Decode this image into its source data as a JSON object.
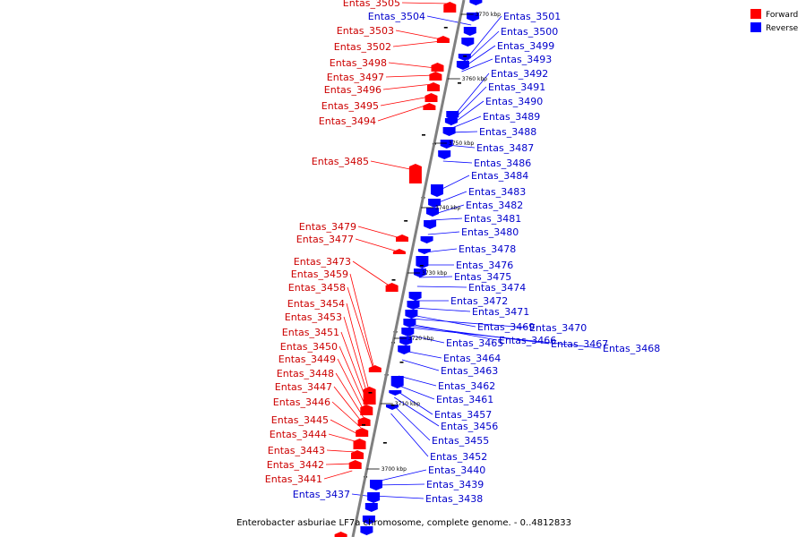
{
  "caption": "Enterobacter asburiae LF7a chromosome, complete genome. - 0..4812833",
  "legend": [
    {
      "label": "Forward",
      "color": "#ff0000"
    },
    {
      "label": "Reverse",
      "color": "#0000ff"
    }
  ],
  "colors": {
    "forward": "#ff0000",
    "forward_label": "#cc0000",
    "reverse": "#0000ff",
    "reverse_label": "#0000cc",
    "backbone": "#808080"
  },
  "ticks": [
    "3770 kbp",
    "3760 kbp",
    "3750 kbp",
    "3740 kbp",
    "3730 kbp",
    "3720 kbp",
    "3710 kbp",
    "3700 kbp"
  ],
  "forward_genes": [
    "Entas_3505",
    "Entas_3503",
    "Entas_3502",
    "Entas_3498",
    "Entas_3497",
    "Entas_3496",
    "Entas_3495",
    "Entas_3494",
    "Entas_3485",
    "Entas_3479",
    "Entas_3477",
    "Entas_3473",
    "Entas_3459",
    "Entas_3458",
    "Entas_3454",
    "Entas_3453",
    "Entas_3451",
    "Entas_3450",
    "Entas_3449",
    "Entas_3448",
    "Entas_3447",
    "Entas_3446",
    "Entas_3445",
    "Entas_3444",
    "Entas_3443",
    "Entas_3442",
    "Entas_3441"
  ],
  "reverse_genes": [
    "Entas_3504",
    "Entas_3437",
    "Entas_3501",
    "Entas_3500",
    "Entas_3499",
    "Entas_3493",
    "Entas_3492",
    "Entas_3491",
    "Entas_3490",
    "Entas_3489",
    "Entas_3488",
    "Entas_3487",
    "Entas_3486",
    "Entas_3484",
    "Entas_3483",
    "Entas_3482",
    "Entas_3481",
    "Entas_3480",
    "Entas_3478",
    "Entas_3476",
    "Entas_3475",
    "Entas_3474",
    "Entas_3472",
    "Entas_3471",
    "Entas_3469",
    "Entas_3470",
    "Entas_3466",
    "Entas_3467",
    "Entas_3468",
    "Entas_3465",
    "Entas_3464",
    "Entas_3463",
    "Entas_3462",
    "Entas_3461",
    "Entas_3457",
    "Entas_3456",
    "Entas_3455",
    "Entas_3452",
    "Entas_3440",
    "Entas_3439",
    "Entas_3438"
  ]
}
